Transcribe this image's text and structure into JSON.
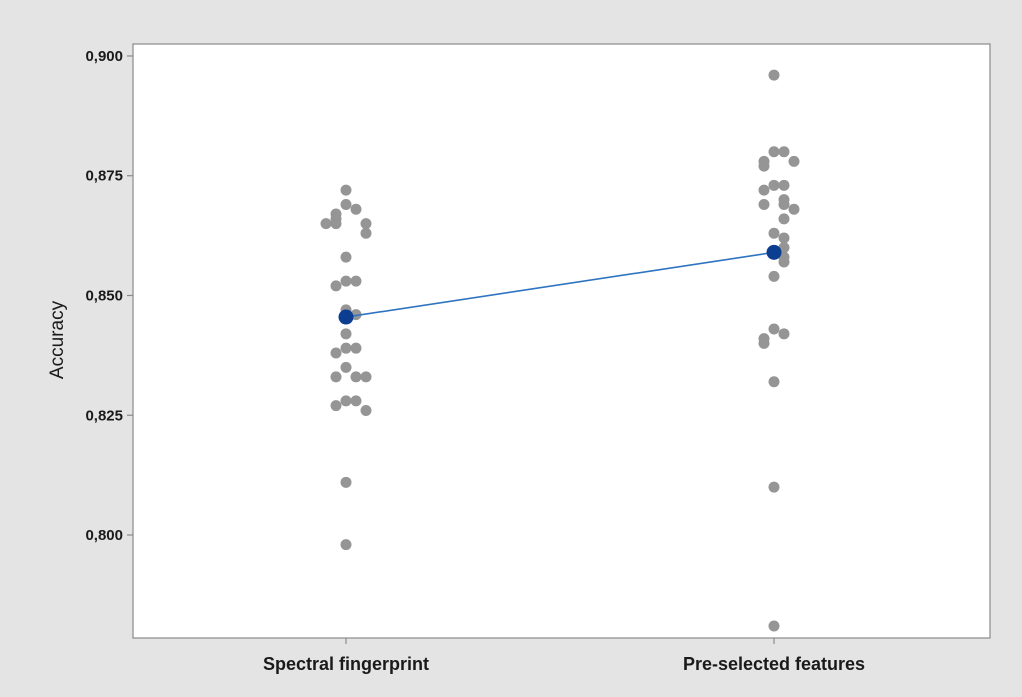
{
  "chart_data": {
    "type": "scatter",
    "subtype": "individual value plot with mean connect line",
    "title": "",
    "xlabel": "",
    "ylabel": "Accuracy",
    "categories": [
      "Spectral fingerprint",
      "Pre-selected features"
    ],
    "y_ticks": [
      0.8,
      0.825,
      0.85,
      0.875,
      0.9
    ],
    "y_tick_labels": [
      "0,800",
      "0,825",
      "0,850",
      "0,875",
      "0,900"
    ],
    "ylim": [
      0.7785,
      0.9025
    ],
    "grid": false,
    "series": [
      {
        "category": "Spectral fingerprint",
        "values": [
          0.872,
          0.869,
          0.868,
          0.867,
          0.866,
          0.865,
          0.865,
          0.865,
          0.863,
          0.858,
          0.853,
          0.853,
          0.852,
          0.847,
          0.846,
          0.842,
          0.839,
          0.839,
          0.838,
          0.835,
          0.833,
          0.833,
          0.833,
          0.828,
          0.828,
          0.827,
          0.826,
          0.811,
          0.798
        ]
      },
      {
        "category": "Pre-selected features",
        "values": [
          0.896,
          0.88,
          0.88,
          0.878,
          0.878,
          0.877,
          0.873,
          0.873,
          0.872,
          0.87,
          0.869,
          0.869,
          0.868,
          0.866,
          0.863,
          0.862,
          0.86,
          0.858,
          0.857,
          0.854,
          0.843,
          0.842,
          0.841,
          0.84,
          0.832,
          0.81,
          0.781
        ]
      }
    ],
    "means": {
      "values": [
        0.8455,
        0.859
      ],
      "color": "#0b3d91",
      "line_color": "#2f74c0"
    },
    "colors": {
      "points": "#959595",
      "background": "#e4e4e4",
      "plot_area": "#ffffff",
      "axis": "#8a8a8a"
    }
  }
}
